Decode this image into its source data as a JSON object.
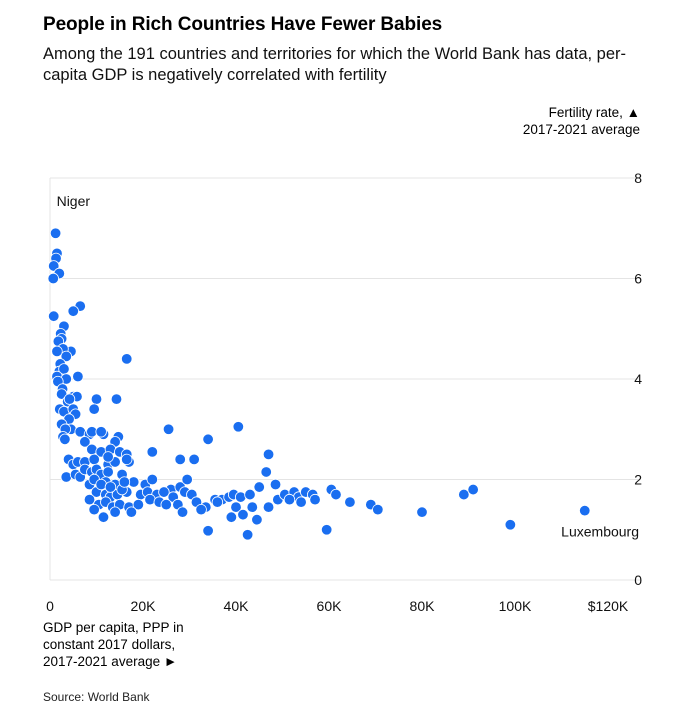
{
  "title": "People in Rich Countries Have Fewer Babies",
  "subtitle": "Among the 191 countries and territories for which the World Bank has data, per-capita GDP is negatively correlated with fertility",
  "source": "Source: World Bank",
  "chart_data": {
    "type": "scatter",
    "xlabel": "GDP per capita, PPP in constant 2017 dollars, 2017-2021 average ►",
    "ylabel": "Fertility rate, ▲ 2017-2021 average",
    "xlim": [
      0,
      120000
    ],
    "ylim": [
      0,
      8
    ],
    "x_ticks": [
      {
        "value": 0,
        "label": "0"
      },
      {
        "value": 20000,
        "label": "20K"
      },
      {
        "value": 40000,
        "label": "40K"
      },
      {
        "value": 60000,
        "label": "60K"
      },
      {
        "value": 80000,
        "label": "80K"
      },
      {
        "value": 100000,
        "label": "100K"
      },
      {
        "value": 120000,
        "label": "$120K"
      }
    ],
    "y_ticks": [
      {
        "value": 0,
        "label": "0"
      },
      {
        "value": 2,
        "label": "2"
      },
      {
        "value": 4,
        "label": "4"
      },
      {
        "value": 6,
        "label": "6"
      },
      {
        "value": 8,
        "label": "8"
      }
    ],
    "grid": "horizontal",
    "point_color": "#1a6ef0",
    "annotations": [
      {
        "label": "Niger",
        "x": 1200,
        "y": 7.1
      },
      {
        "label": "Luxembourg",
        "x": 115000,
        "y": 1.38
      }
    ],
    "points": [
      [
        1200,
        6.9
      ],
      [
        1500,
        6.5
      ],
      [
        1300,
        6.4
      ],
      [
        800,
        6.25
      ],
      [
        2000,
        6.1
      ],
      [
        700,
        6.0
      ],
      [
        6500,
        5.45
      ],
      [
        5000,
        5.35
      ],
      [
        800,
        5.25
      ],
      [
        3000,
        5.05
      ],
      [
        2300,
        4.9
      ],
      [
        2500,
        4.8
      ],
      [
        1800,
        4.75
      ],
      [
        4500,
        4.55
      ],
      [
        2800,
        4.6
      ],
      [
        3500,
        4.45
      ],
      [
        1500,
        4.55
      ],
      [
        16500,
        4.4
      ],
      [
        2200,
        4.3
      ],
      [
        2000,
        4.15
      ],
      [
        3000,
        4.2
      ],
      [
        1500,
        4.05
      ],
      [
        3500,
        4.0
      ],
      [
        6000,
        4.05
      ],
      [
        1700,
        3.95
      ],
      [
        2700,
        3.8
      ],
      [
        2500,
        3.7
      ],
      [
        5000,
        3.65
      ],
      [
        5800,
        3.65
      ],
      [
        3800,
        3.55
      ],
      [
        4200,
        3.6
      ],
      [
        10000,
        3.6
      ],
      [
        14300,
        3.6
      ],
      [
        2100,
        3.4
      ],
      [
        3000,
        3.35
      ],
      [
        5000,
        3.4
      ],
      [
        5500,
        3.3
      ],
      [
        9500,
        3.4
      ],
      [
        4100,
        3.2
      ],
      [
        2500,
        3.1
      ],
      [
        4500,
        3.0
      ],
      [
        3300,
        3.0
      ],
      [
        6500,
        2.95
      ],
      [
        8500,
        2.9
      ],
      [
        9000,
        2.95
      ],
      [
        11500,
        2.9
      ],
      [
        11000,
        2.95
      ],
      [
        14700,
        2.85
      ],
      [
        2800,
        2.85
      ],
      [
        3200,
        2.8
      ],
      [
        7500,
        2.75
      ],
      [
        14000,
        2.75
      ],
      [
        40500,
        3.05
      ],
      [
        25500,
        3.0
      ],
      [
        34000,
        2.8
      ],
      [
        9000,
        2.6
      ],
      [
        11000,
        2.55
      ],
      [
        13000,
        2.6
      ],
      [
        15000,
        2.55
      ],
      [
        16500,
        2.5
      ],
      [
        22000,
        2.55
      ],
      [
        4000,
        2.4
      ],
      [
        5000,
        2.3
      ],
      [
        6000,
        2.35
      ],
      [
        7500,
        2.35
      ],
      [
        9500,
        2.4
      ],
      [
        12500,
        2.3
      ],
      [
        14000,
        2.35
      ],
      [
        17000,
        2.35
      ],
      [
        16500,
        2.4
      ],
      [
        28000,
        2.4
      ],
      [
        31000,
        2.4
      ],
      [
        47000,
        2.5
      ],
      [
        3500,
        2.05
      ],
      [
        5500,
        2.1
      ],
      [
        6500,
        2.05
      ],
      [
        7500,
        2.2
      ],
      [
        9000,
        2.15
      ],
      [
        10000,
        2.2
      ],
      [
        11000,
        2.1
      ],
      [
        12500,
        2.15
      ],
      [
        15500,
        2.1
      ],
      [
        46500,
        2.15
      ],
      [
        8500,
        1.9
      ],
      [
        9500,
        2.0
      ],
      [
        11000,
        1.85
      ],
      [
        12000,
        1.95
      ],
      [
        14000,
        1.9
      ],
      [
        18000,
        1.95
      ],
      [
        20500,
        1.9
      ],
      [
        22000,
        2.0
      ],
      [
        26000,
        1.8
      ],
      [
        28000,
        1.85
      ],
      [
        29500,
        2.0
      ],
      [
        45000,
        1.85
      ],
      [
        48500,
        1.9
      ],
      [
        60500,
        1.8
      ],
      [
        10000,
        1.75
      ],
      [
        12000,
        1.7
      ],
      [
        13000,
        1.65
      ],
      [
        14500,
        1.7
      ],
      [
        16500,
        1.75
      ],
      [
        19500,
        1.7
      ],
      [
        21000,
        1.75
      ],
      [
        23000,
        1.7
      ],
      [
        24500,
        1.75
      ],
      [
        26500,
        1.65
      ],
      [
        29000,
        1.75
      ],
      [
        30500,
        1.7
      ],
      [
        35500,
        1.6
      ],
      [
        37000,
        1.6
      ],
      [
        38500,
        1.65
      ],
      [
        39500,
        1.7
      ],
      [
        41000,
        1.65
      ],
      [
        43000,
        1.7
      ],
      [
        49000,
        1.6
      ],
      [
        50500,
        1.7
      ],
      [
        52500,
        1.75
      ],
      [
        53500,
        1.65
      ],
      [
        55000,
        1.75
      ],
      [
        56500,
        1.7
      ],
      [
        61500,
        1.7
      ],
      [
        64500,
        1.55
      ],
      [
        89000,
        1.7
      ],
      [
        91000,
        1.8
      ],
      [
        8500,
        1.6
      ],
      [
        10500,
        1.5
      ],
      [
        12000,
        1.55
      ],
      [
        13500,
        1.45
      ],
      [
        15000,
        1.5
      ],
      [
        17000,
        1.45
      ],
      [
        19000,
        1.5
      ],
      [
        21500,
        1.6
      ],
      [
        23500,
        1.55
      ],
      [
        25000,
        1.5
      ],
      [
        27500,
        1.5
      ],
      [
        31500,
        1.55
      ],
      [
        33500,
        1.45
      ],
      [
        36000,
        1.55
      ],
      [
        40000,
        1.45
      ],
      [
        43500,
        1.45
      ],
      [
        47000,
        1.45
      ],
      [
        51500,
        1.6
      ],
      [
        54000,
        1.55
      ],
      [
        57000,
        1.6
      ],
      [
        69000,
        1.5
      ],
      [
        70500,
        1.4
      ],
      [
        9500,
        1.4
      ],
      [
        14000,
        1.35
      ],
      [
        17500,
        1.35
      ],
      [
        28500,
        1.35
      ],
      [
        32500,
        1.4
      ],
      [
        39000,
        1.25
      ],
      [
        41500,
        1.3
      ],
      [
        44500,
        1.2
      ],
      [
        80000,
        1.35
      ],
      [
        11500,
        1.25
      ],
      [
        99000,
        1.1
      ],
      [
        115000,
        1.38
      ],
      [
        34000,
        0.98
      ],
      [
        42500,
        0.9
      ],
      [
        59500,
        1.0
      ],
      [
        11000,
        1.9
      ],
      [
        13000,
        1.85
      ],
      [
        15500,
        1.8
      ],
      [
        16000,
        1.95
      ],
      [
        12500,
        2.45
      ]
    ]
  }
}
